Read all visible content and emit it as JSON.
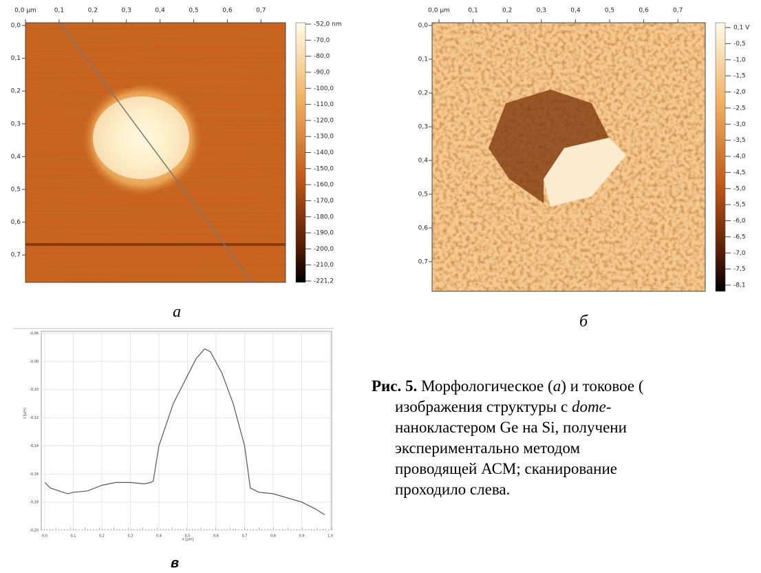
{
  "panels": [
    {
      "xticks": [
        "0,0 µm",
        "0,1",
        "0,2",
        "0,3",
        "0,4",
        "0,5",
        "0,6",
        "0,7"
      ],
      "yticks": [
        "0,0",
        "0,1",
        "0,2",
        "0,3",
        "0,4",
        "0,5",
        "0,6",
        "0,7"
      ],
      "colorbar": [
        "-52,0 nm",
        "-70,0",
        "-80,0",
        "-90,0",
        "-100,0",
        "-110,0",
        "-120,0",
        "-130,0",
        "-140,0",
        "-150,0",
        "-160,0",
        "-170,0",
        "-180,0",
        "-190,0",
        "-200,0",
        "-210,0",
        "-221,2"
      ],
      "label": "а"
    },
    {
      "xticks": [
        "0,0 µm",
        "0,1",
        "0,2",
        "0,3",
        "0,4",
        "0,5",
        "0,6",
        "0,7"
      ],
      "yticks": [
        "0,0",
        "0,1",
        "0,2",
        "0,3",
        "0,4",
        "0,5",
        "0,6",
        "0,7"
      ],
      "colorbar": [
        "0,1 V",
        "-0,5",
        "-1,0",
        "-1,5",
        "-2,0",
        "-2,5",
        "-3,0",
        "-3,5",
        "-4,0",
        "-4,5",
        "-5,0",
        "-5,5",
        "-6,0",
        "-6,5",
        "-7,0",
        "-7,5",
        "-8,1"
      ],
      "label": "б"
    }
  ],
  "profile": {
    "type": "line",
    "xlabel": "x [µm]",
    "ylabel": "z [µm]",
    "label": "в",
    "x": [
      0,
      0.02,
      0.05,
      0.08,
      0.1,
      0.15,
      0.2,
      0.25,
      0.3,
      0.35,
      0.37,
      0.38,
      0.4,
      0.45,
      0.5,
      0.53,
      0.56,
      0.58,
      0.62,
      0.66,
      0.7,
      0.72,
      0.75,
      0.8,
      0.85,
      0.9,
      0.95,
      0.98
    ],
    "values": [
      -0.166,
      -0.17,
      -0.172,
      -0.174,
      -0.173,
      -0.172,
      -0.168,
      -0.166,
      -0.166,
      -0.167,
      -0.166,
      -0.165,
      -0.14,
      -0.11,
      -0.09,
      -0.078,
      -0.071,
      -0.073,
      -0.088,
      -0.11,
      -0.14,
      -0.17,
      -0.173,
      -0.174,
      -0.177,
      -0.18,
      -0.185,
      -0.189
    ],
    "xlim": [
      0,
      1.0
    ],
    "ylim": [
      -0.2,
      -0.06
    ],
    "xticks": [
      {
        "value": 0,
        "label": "0,0"
      },
      {
        "value": 0.1,
        "label": "0,1"
      },
      {
        "value": 0.2,
        "label": "0,2"
      },
      {
        "value": 0.3,
        "label": "0,3"
      },
      {
        "value": 0.4,
        "label": "0,4"
      },
      {
        "value": 0.5,
        "label": "0,5"
      },
      {
        "value": 0.6,
        "label": "0,6"
      },
      {
        "value": 0.7,
        "label": "0,7"
      },
      {
        "value": 0.8,
        "label": "0,8"
      },
      {
        "value": 0.9,
        "label": "0,9"
      },
      {
        "value": 1.0,
        "label": "1,0"
      }
    ],
    "yticks": [
      {
        "value": -0.06,
        "label": "-0,06"
      },
      {
        "value": -0.08,
        "label": "-0,08"
      },
      {
        "value": -0.1,
        "label": "-0,10"
      },
      {
        "value": -0.12,
        "label": "-0,12"
      },
      {
        "value": -0.14,
        "label": "-0,14"
      },
      {
        "value": -0.16,
        "label": "-0,16"
      },
      {
        "value": -0.18,
        "label": "-0,18"
      },
      {
        "value": -0.2,
        "label": "-0,20"
      }
    ],
    "color": "#555555"
  },
  "caption": {
    "lines": [
      [
        {
          "text": "Рис. 5.",
          "style": "bold"
        },
        {
          "text": " Морфологическое (",
          "style": "normal"
        },
        {
          "text": "а",
          "style": "italic"
        },
        {
          "text": ") и токовое (",
          "style": "normal"
        }
      ],
      [
        {
          "text": "изображения структуры с ",
          "style": "normal"
        },
        {
          "text": "dome",
          "style": "italic"
        },
        {
          "text": "-",
          "style": "normal"
        }
      ],
      [
        {
          "text": "нанокластером Ge на Si, получени",
          "style": "normal"
        }
      ],
      [
        {
          "text": "экспериментально методом",
          "style": "normal"
        }
      ],
      [
        {
          "text": "проводящей АСМ; сканирование",
          "style": "normal"
        }
      ],
      [
        {
          "text": "проходило слева.",
          "style": "normal"
        }
      ]
    ]
  }
}
